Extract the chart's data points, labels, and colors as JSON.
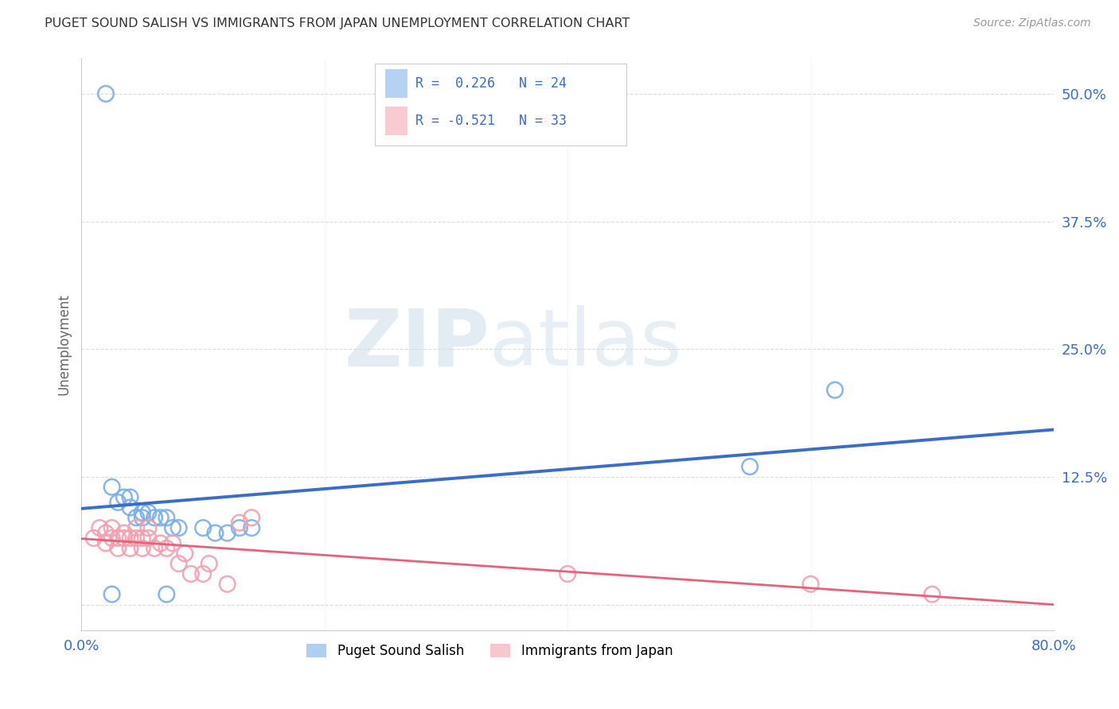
{
  "title": "PUGET SOUND SALISH VS IMMIGRANTS FROM JAPAN UNEMPLOYMENT CORRELATION CHART",
  "source": "Source: ZipAtlas.com",
  "ylabel": "Unemployment",
  "xlim": [
    0.0,
    0.8
  ],
  "ylim": [
    -0.025,
    0.535
  ],
  "xticks": [
    0.0,
    0.2,
    0.4,
    0.6,
    0.8
  ],
  "xtick_labels": [
    "0.0%",
    "",
    "",
    "",
    "80.0%"
  ],
  "yticks": [
    0.0,
    0.125,
    0.25,
    0.375,
    0.5
  ],
  "ytick_labels": [
    "",
    "12.5%",
    "25.0%",
    "37.5%",
    "50.0%"
  ],
  "background_color": "#ffffff",
  "watermark_zip": "ZIP",
  "watermark_atlas": "atlas",
  "blue_color": "#7aaee8",
  "pink_color": "#f4a0b0",
  "blue_line_color": "#3a6cc8",
  "pink_line_color": "#e8607a",
  "R_blue": 0.226,
  "N_blue": 24,
  "R_pink": -0.521,
  "N_pink": 33,
  "blue_scatter_x": [
    0.02,
    0.025,
    0.03,
    0.035,
    0.04,
    0.04,
    0.045,
    0.05,
    0.05,
    0.055,
    0.06,
    0.065,
    0.07,
    0.075,
    0.08,
    0.1,
    0.11,
    0.12,
    0.13,
    0.14,
    0.55,
    0.62,
    0.025,
    0.07
  ],
  "blue_scatter_y": [
    0.5,
    0.115,
    0.1,
    0.105,
    0.095,
    0.105,
    0.085,
    0.085,
    0.09,
    0.09,
    0.085,
    0.085,
    0.085,
    0.075,
    0.075,
    0.075,
    0.07,
    0.07,
    0.075,
    0.075,
    0.135,
    0.21,
    0.01,
    0.01
  ],
  "pink_scatter_x": [
    0.01,
    0.015,
    0.02,
    0.02,
    0.025,
    0.025,
    0.03,
    0.03,
    0.035,
    0.035,
    0.04,
    0.04,
    0.045,
    0.045,
    0.05,
    0.05,
    0.055,
    0.055,
    0.06,
    0.065,
    0.07,
    0.075,
    0.08,
    0.085,
    0.09,
    0.1,
    0.105,
    0.12,
    0.13,
    0.14,
    0.4,
    0.6,
    0.7
  ],
  "pink_scatter_y": [
    0.065,
    0.075,
    0.06,
    0.07,
    0.065,
    0.075,
    0.055,
    0.065,
    0.065,
    0.07,
    0.055,
    0.065,
    0.065,
    0.075,
    0.055,
    0.065,
    0.065,
    0.075,
    0.055,
    0.06,
    0.055,
    0.06,
    0.04,
    0.05,
    0.03,
    0.03,
    0.04,
    0.02,
    0.08,
    0.085,
    0.03,
    0.02,
    0.01
  ],
  "grid_color": "#cccccc",
  "title_color": "#333333",
  "axis_color": "#3a6cc8",
  "blue_intercept": 0.092,
  "blue_slope": 0.165,
  "pink_intercept": 0.075,
  "pink_slope": -0.085
}
